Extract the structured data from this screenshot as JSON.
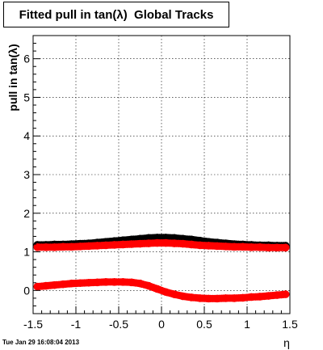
{
  "chart_data": {
    "type": "scatter",
    "title": "Fitted pull in tan(λ)  Global Tracks",
    "xlabel": "η",
    "ylabel": "pull in tan(λ)",
    "xlim": [
      -1.5,
      1.5
    ],
    "ylim": [
      -0.6,
      6.6
    ],
    "x_ticks": [
      "-1.5",
      "-1",
      "-0.5",
      "0",
      "0.5",
      "1",
      "1.5"
    ],
    "y_ticks": [
      "0",
      "1",
      "2",
      "3",
      "4",
      "5",
      "6"
    ],
    "grid": true,
    "series": [
      {
        "color": "#000000",
        "marker": "circle",
        "x": [
          -1.45,
          -1.35,
          -1.25,
          -1.15,
          -1.05,
          -0.95,
          -0.85,
          -0.75,
          -0.65,
          -0.55,
          -0.45,
          -0.35,
          -0.25,
          -0.15,
          -0.05,
          0.05,
          0.15,
          0.25,
          0.35,
          0.45,
          0.55,
          0.65,
          0.75,
          0.85,
          0.95,
          1.05,
          1.15,
          1.25,
          1.35,
          1.45
        ],
        "y": [
          1.18,
          1.18,
          1.19,
          1.19,
          1.2,
          1.21,
          1.22,
          1.24,
          1.26,
          1.28,
          1.3,
          1.32,
          1.34,
          1.36,
          1.37,
          1.37,
          1.36,
          1.34,
          1.32,
          1.29,
          1.26,
          1.24,
          1.22,
          1.2,
          1.19,
          1.18,
          1.17,
          1.17,
          1.16,
          1.16
        ]
      },
      {
        "color": "#ff0000",
        "marker": "circle",
        "x": [
          -1.45,
          -1.35,
          -1.25,
          -1.15,
          -1.05,
          -0.95,
          -0.85,
          -0.75,
          -0.65,
          -0.55,
          -0.45,
          -0.35,
          -0.25,
          -0.15,
          -0.05,
          0.05,
          0.15,
          0.25,
          0.35,
          0.45,
          0.55,
          0.65,
          0.75,
          0.85,
          0.95,
          1.05,
          1.15,
          1.25,
          1.35,
          1.45
        ],
        "y": [
          1.12,
          1.12,
          1.12,
          1.13,
          1.13,
          1.14,
          1.15,
          1.16,
          1.17,
          1.18,
          1.19,
          1.2,
          1.21,
          1.22,
          1.23,
          1.23,
          1.22,
          1.21,
          1.19,
          1.17,
          1.16,
          1.15,
          1.14,
          1.13,
          1.13,
          1.12,
          1.12,
          1.11,
          1.11,
          1.11
        ]
      },
      {
        "color": "#ff0000",
        "marker": "circle",
        "x": [
          -1.45,
          -1.35,
          -1.25,
          -1.15,
          -1.05,
          -0.95,
          -0.85,
          -0.75,
          -0.65,
          -0.55,
          -0.45,
          -0.35,
          -0.25,
          -0.15,
          -0.05,
          0.05,
          0.15,
          0.25,
          0.35,
          0.45,
          0.55,
          0.65,
          0.75,
          0.85,
          0.95,
          1.05,
          1.15,
          1.25,
          1.35,
          1.45
        ],
        "y": [
          0.1,
          0.12,
          0.14,
          0.16,
          0.18,
          0.19,
          0.2,
          0.21,
          0.22,
          0.22,
          0.22,
          0.21,
          0.18,
          0.12,
          0.04,
          -0.04,
          -0.1,
          -0.15,
          -0.18,
          -0.2,
          -0.21,
          -0.21,
          -0.2,
          -0.2,
          -0.19,
          -0.17,
          -0.16,
          -0.14,
          -0.12,
          -0.1
        ]
      }
    ]
  },
  "footer": {
    "timestamp": "Tue Jan 29 16:08:04 2013"
  }
}
